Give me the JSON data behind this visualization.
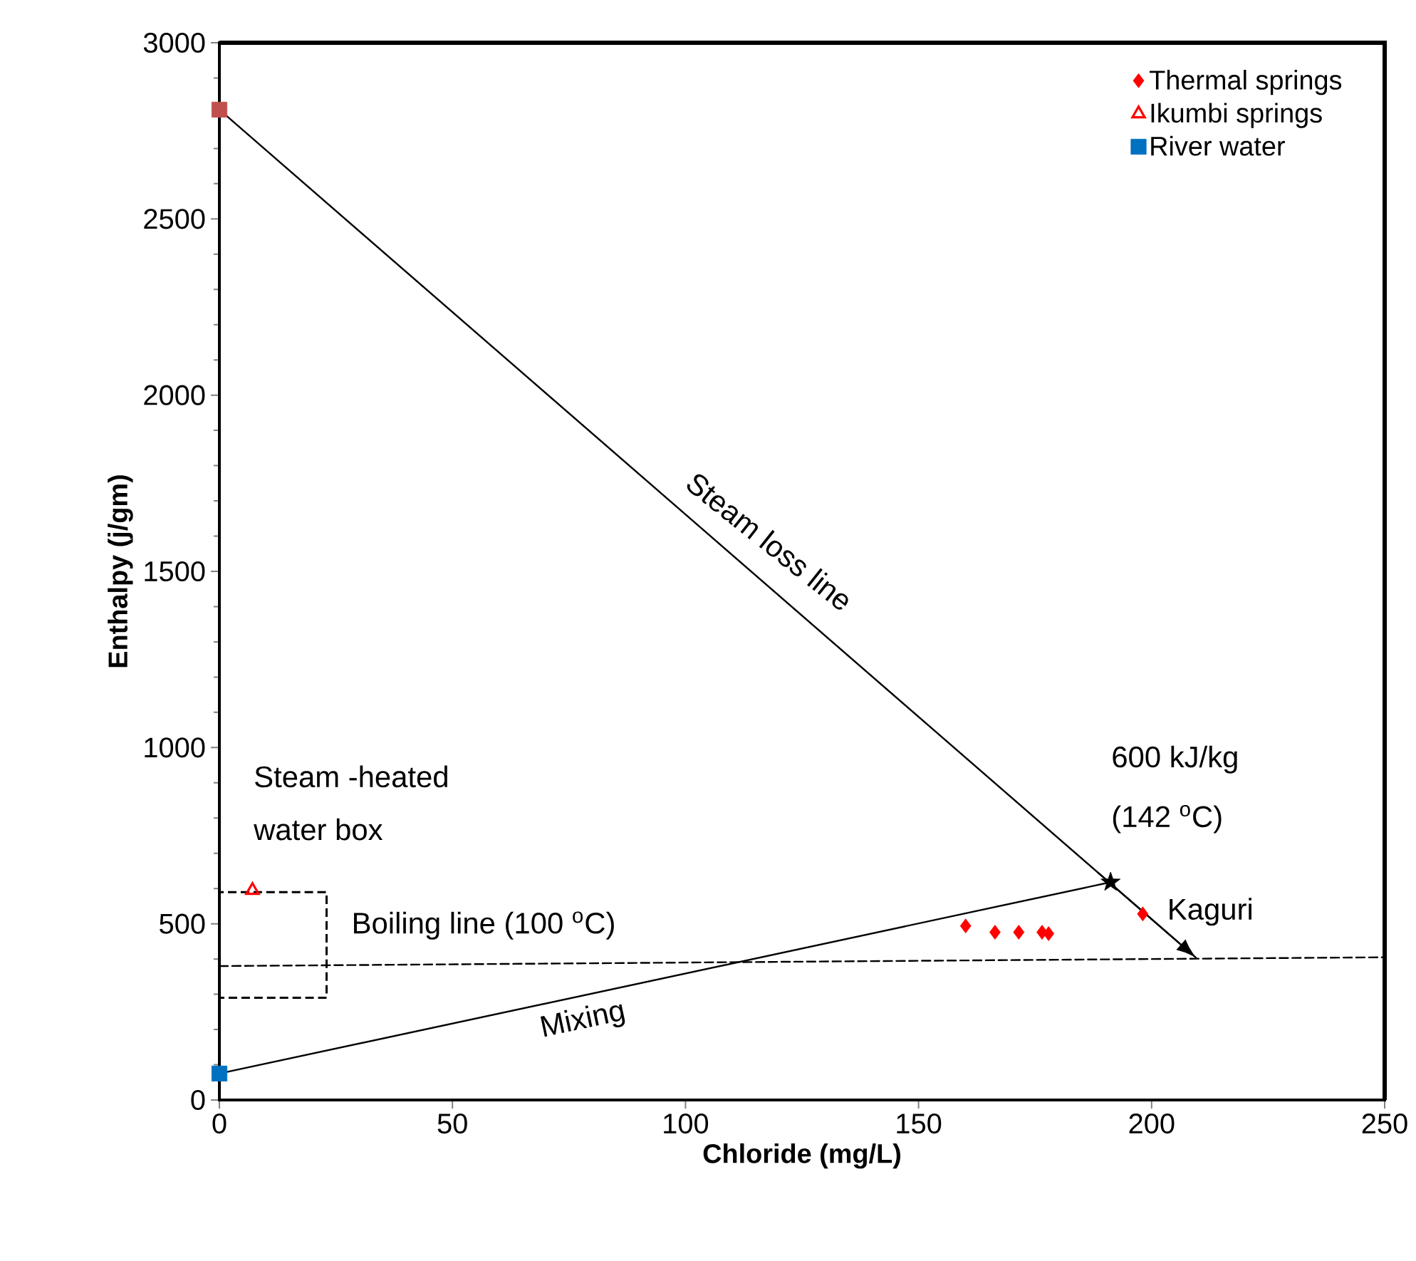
{
  "chart_data": {
    "type": "scatter",
    "xlabel": "Chloride (mg/L)",
    "ylabel": "Enthalpy (j/gm)",
    "xlim": [
      0,
      250
    ],
    "xticks": [
      0,
      50,
      100,
      150,
      200,
      250
    ],
    "ylim": [
      0,
      3000
    ],
    "yticks": [
      0,
      500,
      1000,
      1500,
      2000,
      2500,
      3000
    ],
    "grid": false,
    "legend": "top right",
    "series": [
      {
        "type": "line",
        "color": "#000000",
        "line_style": "solid",
        "marker": "none",
        "x": [
          0,
          209.5
        ],
        "values": [
          2810,
          404
        ]
      },
      {
        "type": "line",
        "color": "#000000",
        "line_style": "solid",
        "marker": "none",
        "x": [
          0,
          191.2
        ],
        "values": [
          75,
          618
        ]
      },
      {
        "type": "line",
        "color": "#000000",
        "line_style": "dashed",
        "marker": "none",
        "x": [
          0,
          250
        ],
        "values": [
          380,
          405
        ]
      },
      {
        "name": "Thermal springs",
        "color": "#ff0000",
        "marker": "diamond",
        "x": [
          160.1,
          166.4,
          171.5,
          176.5,
          177.9,
          198.1
        ],
        "values": [
          494,
          476,
          476,
          476,
          472,
          528
        ]
      },
      {
        "name": "Ikumbi springs",
        "color": "#ff0000",
        "marker": "triangle",
        "x": [
          7.1
        ],
        "values": [
          595
        ]
      },
      {
        "name": "River water",
        "color": "#0070c0",
        "marker": "square",
        "x": [
          0
        ],
        "values": [
          75
        ]
      },
      {
        "color": "#c0504d",
        "marker": "square",
        "x": [
          0
        ],
        "values": [
          2810
        ]
      },
      {
        "color": "#000000",
        "marker": "star",
        "x": [
          191.2
        ],
        "values": [
          618
        ]
      }
    ],
    "annotations": [
      "Steam loss line",
      "Mixing",
      "Boiling line (100 $^{o}$C)",
      "Steam -heated",
      "water box",
      "600 kJ/kg",
      "(142 $^{o}$C)",
      "Kaguri"
    ]
  }
}
